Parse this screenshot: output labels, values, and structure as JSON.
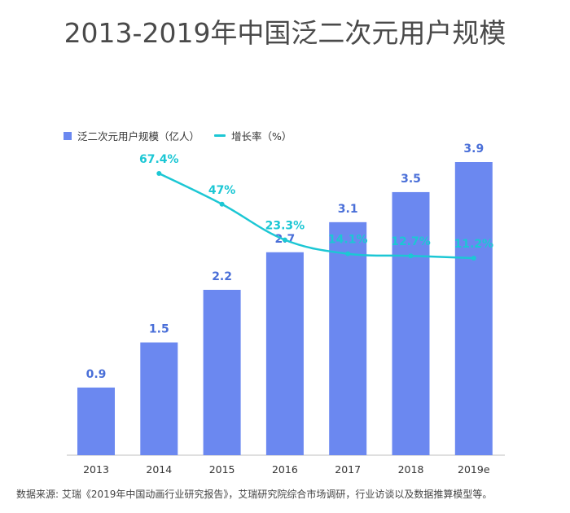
{
  "title": "2013-2019年中国泛二次元用户规模",
  "source": "数据来源: 艾瑞《2019年中国动画行业研究报告》，艾瑞研究院综合市场调研，行业访谈以及数据推算模型等。",
  "colors": {
    "bar": "#6b88f0",
    "line": "#1cc7d4",
    "bar_label": "#4a6fd8",
    "line_label": "#1cc7d4"
  },
  "chart_data": {
    "type": "bar+line",
    "categories": [
      "2013",
      "2014",
      "2015",
      "2016",
      "2017",
      "2018",
      "2019e"
    ],
    "series": [
      {
        "name": "泛二次元用户规模（亿人）",
        "type": "bar",
        "values": [
          0.9,
          1.5,
          2.2,
          2.7,
          3.1,
          3.5,
          3.9
        ],
        "labels": [
          "0.9",
          "1.5",
          "2.2",
          "2.7",
          "3.1",
          "3.5",
          "3.9"
        ]
      },
      {
        "name": "增长率（%）",
        "type": "line",
        "values": [
          null,
          67.4,
          47,
          23.3,
          14.1,
          12.7,
          11.2
        ],
        "labels": [
          "",
          "67.4%",
          "47%",
          "23.3%",
          "14.1%",
          "12.7%",
          "11.2%"
        ]
      }
    ],
    "bar_ylim": [
      0,
      4.3
    ],
    "line_ylim": [
      -70,
      90
    ],
    "grid": false
  }
}
